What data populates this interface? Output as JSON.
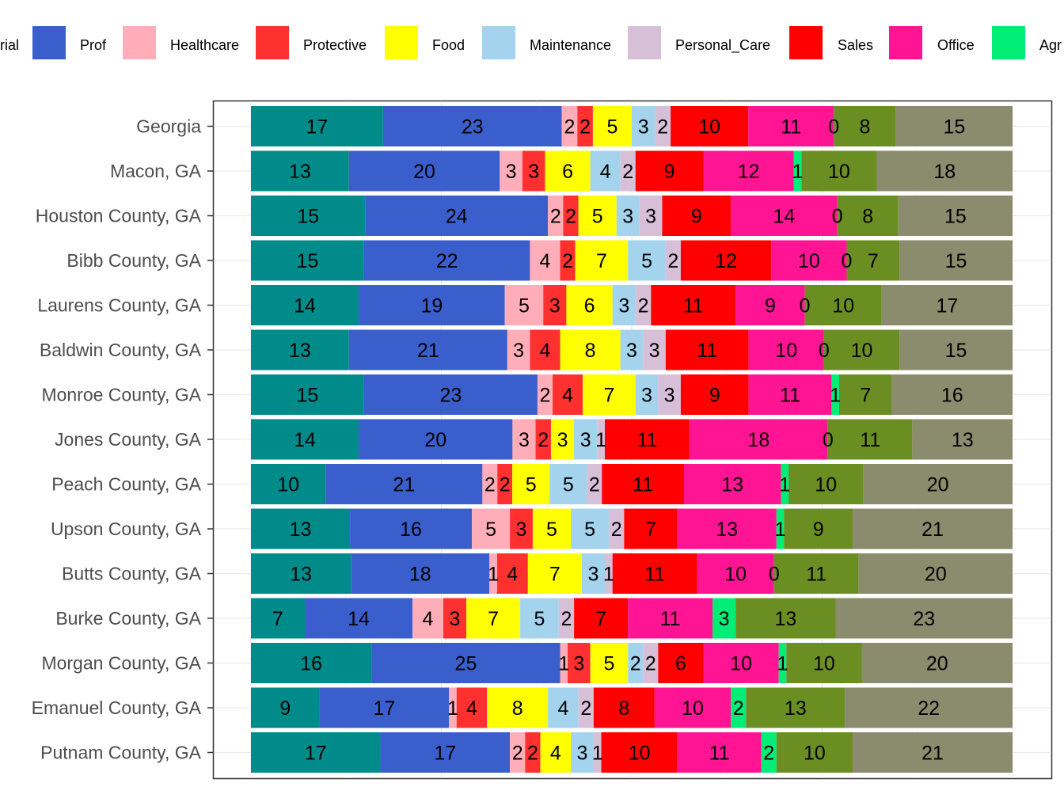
{
  "chart_data": {
    "type": "bar",
    "orientation": "horizontal",
    "stacked": true,
    "normalized_percent": true,
    "grid": true,
    "legend_position": "top",
    "categories": [
      "Georgia",
      "Macon, GA",
      "Houston County, GA",
      "Bibb County, GA",
      "Laurens County, GA",
      "Baldwin County, GA",
      "Monroe County, GA",
      "Jones County, GA",
      "Peach County, GA",
      "Upson County, GA",
      "Butts County, GA",
      "Burke County, GA",
      "Morgan County, GA",
      "Emanuel County, GA",
      "Putnam County, GA"
    ],
    "legend_clipped_left_text": "rial",
    "legend_clipped_right_text": "Agr",
    "series": [
      {
        "name": "",
        "color": "#008B8B",
        "values": [
          17,
          13,
          15,
          15,
          14,
          13,
          15,
          14,
          10,
          13,
          13,
          7,
          16,
          9,
          17
        ]
      },
      {
        "name": "Prof",
        "color": "#3A5FCD",
        "values": [
          23,
          20,
          24,
          22,
          19,
          21,
          23,
          20,
          21,
          16,
          18,
          14,
          25,
          17,
          17
        ]
      },
      {
        "name": "Healthcare",
        "color": "#FFAEB9",
        "values": [
          2,
          3,
          2,
          4,
          5,
          3,
          2,
          3,
          2,
          5,
          1,
          4,
          1,
          1,
          2
        ]
      },
      {
        "name": "Protective",
        "color": "#FF3030",
        "values": [
          2,
          3,
          2,
          2,
          3,
          4,
          4,
          2,
          2,
          3,
          4,
          3,
          3,
          4,
          2
        ]
      },
      {
        "name": "Food",
        "color": "#FFFF00",
        "values": [
          5,
          6,
          5,
          7,
          6,
          8,
          7,
          3,
          5,
          5,
          7,
          7,
          5,
          8,
          4
        ]
      },
      {
        "name": "Maintenance",
        "color": "#A4D3EE",
        "values": [
          3,
          4,
          3,
          5,
          3,
          3,
          3,
          3,
          5,
          5,
          3,
          5,
          2,
          4,
          3
        ]
      },
      {
        "name": "Personal_Care",
        "color": "#D8BFD8",
        "values": [
          2,
          2,
          3,
          2,
          2,
          3,
          3,
          1,
          2,
          2,
          1,
          2,
          2,
          2,
          1
        ]
      },
      {
        "name": "Sales",
        "color": "#FF0000",
        "values": [
          10,
          9,
          9,
          12,
          11,
          11,
          9,
          11,
          11,
          7,
          11,
          7,
          6,
          8,
          10
        ]
      },
      {
        "name": "Office",
        "color": "#FF1493",
        "values": [
          11,
          12,
          14,
          10,
          9,
          10,
          11,
          18,
          13,
          13,
          10,
          11,
          10,
          10,
          11
        ]
      },
      {
        "name": "",
        "color": "#00EE76",
        "values": [
          0,
          1,
          0,
          0,
          0,
          0,
          1,
          0,
          1,
          1,
          0,
          3,
          1,
          2,
          2
        ]
      },
      {
        "name": "",
        "color": "#6B8E23",
        "values": [
          8,
          10,
          8,
          7,
          10,
          10,
          7,
          11,
          10,
          9,
          11,
          13,
          10,
          13,
          10
        ]
      },
      {
        "name": "",
        "color": "#8B8B6E",
        "values": [
          15,
          18,
          15,
          15,
          17,
          15,
          16,
          13,
          20,
          21,
          20,
          23,
          20,
          22,
          21
        ]
      }
    ],
    "title": "",
    "xlabel": "",
    "ylabel": ""
  }
}
